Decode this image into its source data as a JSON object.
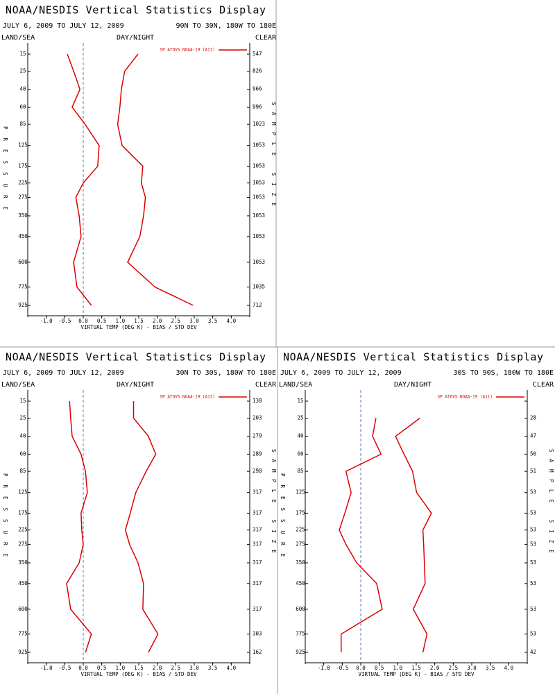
{
  "chart_data": [
    {
      "type": "line",
      "title": "NOAA/NESDIS Vertical Statistics Display",
      "subtitle": "JULY 6, 2009 TO JULY 12, 2009",
      "region": "90N TO 30N, 180W TO 180E",
      "surface": "LAND/SEA",
      "time_of_day": "DAY/NIGHT",
      "sky": "CLEAR",
      "x_label": "VIRTUAL TEMP (DEG K) - BIAS / STD DEV",
      "y_label": "PRESSURE",
      "y2_label": "SAMPLE SIZE",
      "categories": [
        "15",
        "25",
        "40",
        "60",
        "85",
        "125",
        "175",
        "225",
        "275",
        "350",
        "450",
        "600",
        "775",
        "925"
      ],
      "sample_size": [
        547,
        826,
        966,
        996,
        1023,
        1053,
        1053,
        1053,
        1053,
        1053,
        1053,
        1053,
        1035,
        712
      ],
      "series": [
        {
          "name": "SP ATOVS NOAA-19 (A11)",
          "color": "#dd0000",
          "bias": [
            -0.43,
            -0.26,
            -0.09,
            -0.3,
            0.05,
            0.43,
            0.39,
            0.0,
            -0.2,
            -0.11,
            -0.06,
            -0.26,
            -0.17,
            0.22
          ],
          "std_dev": [
            1.48,
            1.12,
            1.03,
            0.99,
            0.93,
            1.05,
            1.61,
            1.57,
            1.68,
            1.63,
            1.53,
            1.2,
            1.94,
            2.97
          ]
        }
      ],
      "xlim": [
        -1.5,
        4.5
      ],
      "xticks": [
        {
          "value": -1,
          "label": "-1.0"
        },
        -0.5,
        {
          "value": 0,
          "label": "0.0"
        },
        0.5,
        {
          "value": 1,
          "label": "1.0"
        },
        1.5,
        {
          "value": 2,
          "label": "2.0"
        },
        2.5,
        {
          "value": 3,
          "label": "3.0"
        },
        3.5,
        {
          "value": 4,
          "label": "4.0"
        }
      ]
    },
    {
      "type": "line",
      "title": "NOAA/NESDIS Vertical Statistics Display",
      "subtitle": "JULY 6, 2009 TO JULY 12, 2009",
      "region": "30N TO 30S, 180W TO 180E",
      "surface": "LAND/SEA",
      "time_of_day": "DAY/NIGHT",
      "sky": "CLEAR",
      "x_label": "VIRTUAL TEMP (DEG K) - BIAS / STD DEV",
      "y_label": "PRESSURE",
      "y2_label": "SAMPLE SIZE",
      "categories": [
        "15",
        "25",
        "40",
        "60",
        "85",
        "125",
        "175",
        "225",
        "275",
        "350",
        "450",
        "600",
        "775",
        "925"
      ],
      "sample_size": [
        138,
        203,
        279,
        289,
        298,
        317,
        317,
        317,
        317,
        317,
        317,
        317,
        303,
        162
      ],
      "series": [
        {
          "name": "SP ATOVS NOAA-19 (A11)",
          "color": "#dd0000",
          "bias": [
            -0.37,
            -0.34,
            -0.3,
            -0.06,
            0.06,
            0.11,
            -0.06,
            -0.04,
            0.0,
            -0.11,
            -0.45,
            -0.34,
            0.22,
            0.06
          ],
          "std_dev": [
            1.36,
            1.36,
            1.76,
            1.96,
            1.7,
            1.42,
            1.27,
            1.14,
            1.25,
            1.48,
            1.63,
            1.61,
            2.02,
            1.76
          ]
        }
      ],
      "xlim": [
        -1.5,
        4.5
      ],
      "xticks": [
        {
          "value": -1,
          "label": "-1.0"
        },
        -0.5,
        {
          "value": 0,
          "label": "0.0"
        },
        0.5,
        {
          "value": 1,
          "label": "1.0"
        },
        1.5,
        {
          "value": 2,
          "label": "2.0"
        },
        2.5,
        {
          "value": 3,
          "label": "3.0"
        },
        3.5,
        {
          "value": 4,
          "label": "4.0"
        }
      ]
    },
    {
      "type": "line",
      "title": "NOAA/NESDIS Vertical Statistics Display",
      "subtitle": "JULY 6, 2009 TO JULY 12, 2009",
      "region": "30S TO 90S, 180W TO 180E",
      "surface": "LAND/SEA",
      "time_of_day": "DAY/NIGHT",
      "sky": "CLEAR",
      "x_label": "VIRTUAL TEMP (DEG K) - BIAS / STD DEV",
      "y_label": "PRESSURE",
      "y2_label": "SAMPLE SIZE",
      "categories": [
        "15",
        "25",
        "40",
        "60",
        "85",
        "125",
        "175",
        "225",
        "275",
        "350",
        "450",
        "600",
        "775",
        "925"
      ],
      "sample_size": [
        null,
        28,
        47,
        50,
        51,
        53,
        53,
        53,
        53,
        53,
        53,
        53,
        53,
        42
      ],
      "series": [
        {
          "name": "SP ATOVS NOAA-19 (A11)",
          "color": "#dd0000",
          "bias": [
            null,
            0.41,
            0.32,
            0.55,
            -0.4,
            -0.26,
            -0.43,
            -0.58,
            -0.4,
            -0.11,
            0.43,
            0.58,
            -0.53,
            -0.53
          ],
          "std_dev": [
            null,
            1.6,
            0.94,
            1.17,
            1.4,
            1.51,
            1.91,
            1.68,
            1.7,
            1.72,
            1.74,
            1.42,
            1.79,
            1.68
          ]
        }
      ],
      "xlim": [
        -1.5,
        4.5
      ],
      "xticks": [
        {
          "value": -1,
          "label": "-1.0"
        },
        -0.5,
        {
          "value": 0,
          "label": "0.0"
        },
        0.5,
        {
          "value": 1,
          "label": "1.0"
        },
        1.5,
        {
          "value": 2,
          "label": "2.0"
        },
        2.5,
        {
          "value": 3,
          "label": "3.0"
        },
        3.5,
        {
          "value": 4,
          "label": "4.0"
        }
      ]
    }
  ]
}
